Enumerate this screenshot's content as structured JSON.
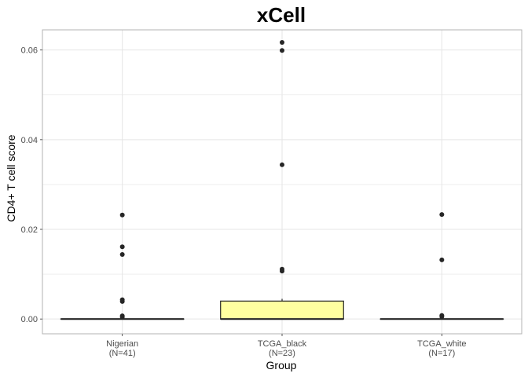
{
  "chart_data": {
    "type": "box",
    "title": "xCell",
    "xlabel": "Group",
    "ylabel": "CD4+ T cell score",
    "ylim": [
      -0.0033,
      0.0645
    ],
    "yticks": [
      0.0,
      0.02,
      0.04,
      0.06
    ],
    "ytick_labels": [
      "0.00",
      "0.02",
      "0.04",
      "0.06"
    ],
    "grid": true,
    "legend": "none",
    "categories": [
      "Nigerian",
      "TCGA_black",
      "TCGA_white"
    ],
    "category_counts": [
      "(N=41)",
      "(N=23)",
      "(N=17)"
    ],
    "boxes": [
      {
        "category": "Nigerian",
        "q1": 0.0,
        "median": 0.0,
        "q3": 0.0,
        "whisker_low": 0.0,
        "whisker_high": 0.0,
        "fill": "#ffffff",
        "outliers": [
          0.0232,
          0.0161,
          0.0144,
          0.0043,
          0.0039,
          0.0007,
          0.0004
        ]
      },
      {
        "category": "TCGA_black",
        "q1": 0.0,
        "median": 0.0,
        "q3": 0.004,
        "whisker_low": 0.0,
        "whisker_high": 0.0045,
        "fill": "#ffffa0",
        "outliers": [
          0.0617,
          0.0599,
          0.0344,
          0.0111,
          0.0107
        ]
      },
      {
        "category": "TCGA_white",
        "q1": 0.0,
        "median": 0.0,
        "q3": 0.0,
        "whisker_low": 0.0,
        "whisker_high": 0.0,
        "fill": "#ffffff",
        "outliers": [
          0.0233,
          0.0132,
          0.0008,
          0.0005
        ]
      }
    ],
    "colors": {
      "point": "#262626",
      "box_line": "#262626",
      "grid": "#e5e5e5",
      "panel_border": "#b3b3b3"
    }
  }
}
